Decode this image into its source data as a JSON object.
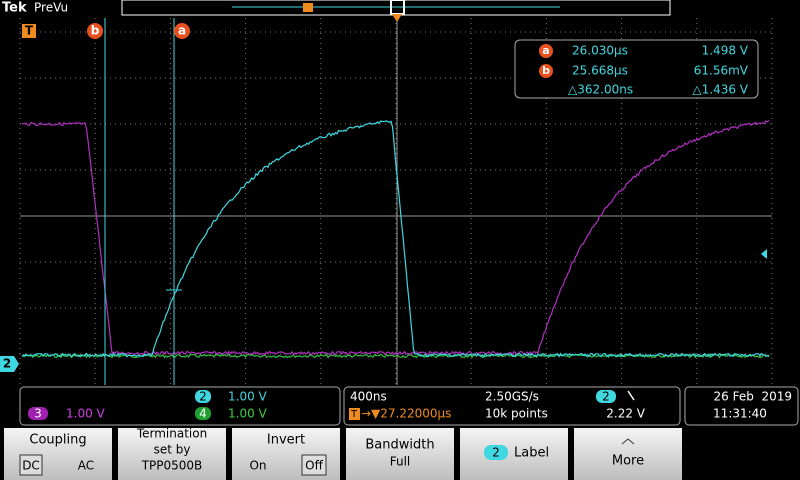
{
  "header": {
    "brand": "Tek",
    "mode": "PreVu"
  },
  "markers": {
    "trigger": "T",
    "cursor_a": "a",
    "cursor_b": "b",
    "channel_2": "2"
  },
  "readout": {
    "a_label": "a",
    "a_time": "26.030µs",
    "a_volt": "1.498 V",
    "b_label": "b",
    "b_time": "25.668µs",
    "b_volt": "61.56mV",
    "delta_time": "△362.00ns",
    "delta_volt": "△1.436 V"
  },
  "status": {
    "ch2": "2",
    "ch2_scale": "1.00 V",
    "ch3": "3",
    "ch3_scale": "1.00 V",
    "ch4": "4",
    "ch4_scale": "1.00 V",
    "timebase": "400ns",
    "sample_rate": "2.50GS/s",
    "trigger_icon": "T",
    "trigger_position": "→▼27.22000µs",
    "record_length": "10k points",
    "trigger_source": "2",
    "trigger_level": "2.22 V",
    "date": "26 Feb  2019",
    "time": "11:31:40"
  },
  "menu": {
    "coupling": "Coupling",
    "dc": "DC",
    "ac": "AC",
    "termination": [
      "Termination",
      "set by",
      "TPP0500B"
    ],
    "invert": "Invert",
    "on": "On",
    "off": "Off",
    "bandwidth": "Bandwidth",
    "full": "Full",
    "label_ch": "2",
    "label": "Label",
    "more": "More"
  }
}
